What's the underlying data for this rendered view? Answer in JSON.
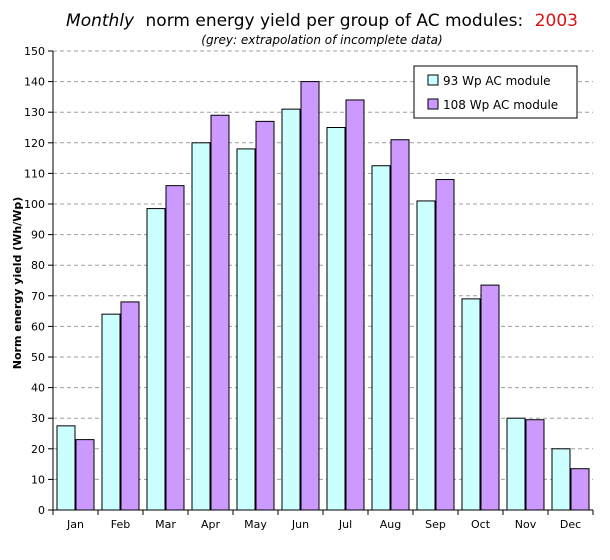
{
  "chart_data": {
    "type": "bar",
    "title": {
      "emphasis": "Monthly",
      "main": "norm energy yield per group of AC modules:",
      "year": "2003"
    },
    "subtitle": "(grey: extrapolation of incomplete data)",
    "ylabel": "Norm energy yield (Wh/Wp)",
    "xlabel": "",
    "ylim": [
      0,
      150
    ],
    "yticks": [
      0,
      10,
      20,
      30,
      40,
      50,
      60,
      70,
      80,
      90,
      100,
      110,
      120,
      130,
      140,
      150
    ],
    "grid": true,
    "legend_position": "top-right",
    "categories": [
      "Jan",
      "Feb",
      "Mar",
      "Apr",
      "May",
      "Jun",
      "Jul",
      "Aug",
      "Sep",
      "Oct",
      "Nov",
      "Dec"
    ],
    "series": [
      {
        "name": "93 Wp AC module",
        "color": "#ccffff",
        "values": [
          27.5,
          64,
          98.5,
          120,
          118,
          131,
          125,
          112.5,
          101,
          69,
          30,
          20
        ]
      },
      {
        "name": "108 Wp AC module",
        "color": "#cc99ff",
        "values": [
          23,
          68,
          106,
          129,
          127,
          140,
          134,
          121,
          108,
          73.5,
          29.5,
          13.5
        ]
      }
    ],
    "colors": {
      "title_year": "#e01010",
      "grid": "#a0a0a0"
    }
  }
}
